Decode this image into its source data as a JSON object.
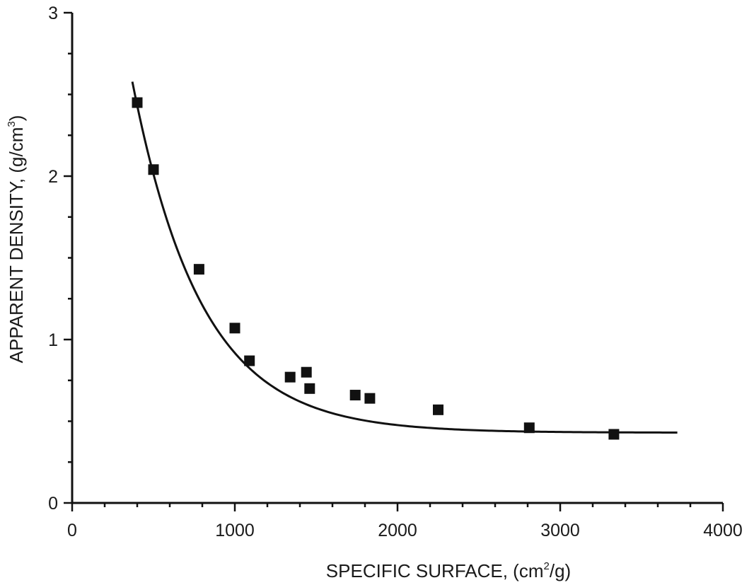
{
  "chart_data": {
    "type": "scatter",
    "title": "",
    "xlabel": {
      "before": "SPECIFIC SURFACE, (cm",
      "sup": "2",
      "after": "/g)"
    },
    "ylabel": {
      "before": "APPARENT DENSITY, (g/cm",
      "sup": "3",
      "after": ")"
    },
    "xlim": [
      0,
      4000
    ],
    "ylim": [
      0,
      3
    ],
    "x_ticks": [
      0,
      1000,
      2000,
      3000,
      4000
    ],
    "y_ticks": [
      0,
      1,
      2,
      3
    ],
    "x_minor_step": 200,
    "y_minor_step": 0.25,
    "grid": false,
    "legend": "none",
    "marker": "square",
    "colors": {
      "marker": "#111111",
      "curve": "#111111",
      "axis": "#111111"
    },
    "series": [
      {
        "points": [
          [
            400,
            2.45
          ],
          [
            500,
            2.04
          ],
          [
            780,
            1.43
          ],
          [
            1000,
            1.07
          ],
          [
            1090,
            0.87
          ],
          [
            1340,
            0.77
          ],
          [
            1440,
            0.8
          ],
          [
            1460,
            0.7
          ],
          [
            1740,
            0.66
          ],
          [
            1830,
            0.64
          ],
          [
            2250,
            0.57
          ],
          [
            2810,
            0.46
          ],
          [
            3330,
            0.42
          ]
        ]
      }
    ],
    "fit_curve": {
      "type": "exponential-decay",
      "y0": 0.43,
      "A": 5.13,
      "t": 425,
      "x_range": [
        370,
        3720
      ]
    }
  }
}
